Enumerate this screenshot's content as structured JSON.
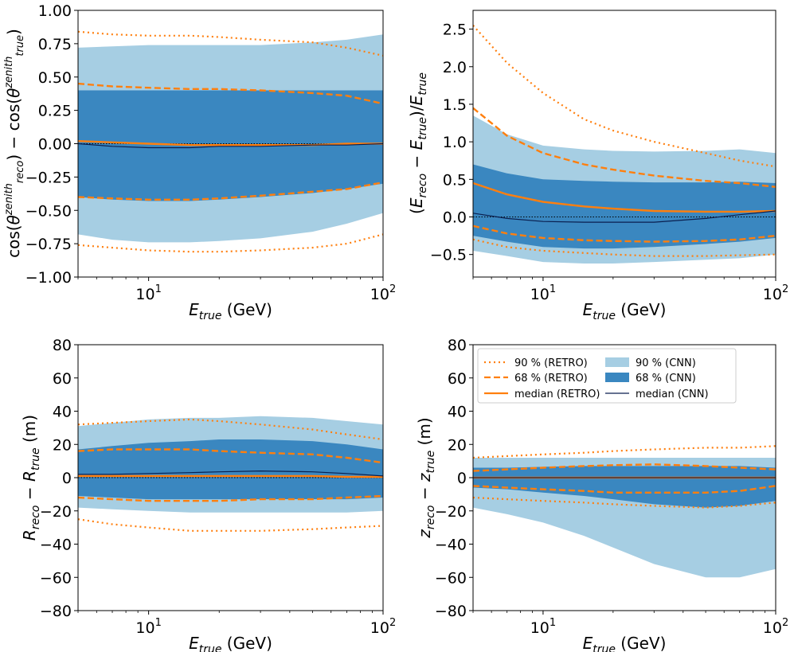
{
  "colors": {
    "retro": "#ff7f0e",
    "cnn_90": "#a6cee3",
    "cnn_68": "#3a87c0",
    "cnn_median": "#0a1f4f",
    "zero_line": "#000000"
  },
  "legend": {
    "items": [
      {
        "label": "90 % (RETRO)",
        "style": "dotted"
      },
      {
        "label": "68 % (RETRO)",
        "style": "dashed"
      },
      {
        "label": "median (RETRO)",
        "style": "solid"
      },
      {
        "label": "90 % (CNN)",
        "style": "band90"
      },
      {
        "label": "68 % (CNN)",
        "style": "band68"
      },
      {
        "label": "median (CNN)",
        "style": "cnnline"
      }
    ]
  },
  "chart_data": [
    {
      "type": "area",
      "panel": "top-left",
      "title": "",
      "xlabel_main": "E",
      "xlabel_sub": "true",
      "xlabel_unit": "(GeV)",
      "ylabel": "cos(θ_reco^zenith) − cos(θ_true^zenith)",
      "xscale": "log",
      "xlim": [
        5,
        100
      ],
      "ylim": [
        -1.0,
        1.0
      ],
      "yticks": [
        -1.0,
        -0.75,
        -0.5,
        -0.25,
        0.0,
        0.25,
        0.5,
        0.75,
        1.0
      ],
      "ytick_labels": [
        "−1.00",
        "−0.75",
        "−0.50",
        "−0.25",
        "0.00",
        "0.25",
        "0.50",
        "0.75",
        "1.00"
      ],
      "x": [
        5,
        7,
        10,
        15,
        20,
        30,
        50,
        70,
        100
      ],
      "series": [
        {
          "name": "90 % (CNN) upper",
          "values": [
            0.72,
            0.73,
            0.74,
            0.74,
            0.74,
            0.74,
            0.76,
            0.78,
            0.82
          ]
        },
        {
          "name": "90 % (CNN) lower",
          "values": [
            -0.68,
            -0.72,
            -0.74,
            -0.74,
            -0.73,
            -0.71,
            -0.66,
            -0.6,
            -0.52
          ]
        },
        {
          "name": "68 % (CNN) upper",
          "values": [
            0.4,
            0.4,
            0.4,
            0.4,
            0.4,
            0.4,
            0.4,
            0.4,
            0.4
          ]
        },
        {
          "name": "68 % (CNN) lower",
          "values": [
            -0.4,
            -0.42,
            -0.43,
            -0.43,
            -0.42,
            -0.4,
            -0.37,
            -0.34,
            -0.3
          ]
        },
        {
          "name": "median (CNN)",
          "values": [
            0.0,
            -0.02,
            -0.03,
            -0.03,
            -0.02,
            -0.02,
            -0.01,
            -0.01,
            0.0
          ]
        },
        {
          "name": "90 % (RETRO) upper",
          "values": [
            0.84,
            0.82,
            0.81,
            0.81,
            0.8,
            0.78,
            0.76,
            0.72,
            0.66
          ]
        },
        {
          "name": "90 % (RETRO) lower",
          "values": [
            -0.76,
            -0.78,
            -0.8,
            -0.81,
            -0.81,
            -0.8,
            -0.78,
            -0.75,
            -0.68
          ]
        },
        {
          "name": "68 % (RETRO) upper",
          "values": [
            0.45,
            0.43,
            0.42,
            0.41,
            0.41,
            0.4,
            0.38,
            0.36,
            0.3
          ]
        },
        {
          "name": "68 % (RETRO) lower",
          "values": [
            -0.4,
            -0.41,
            -0.42,
            -0.42,
            -0.41,
            -0.39,
            -0.36,
            -0.34,
            -0.29
          ]
        },
        {
          "name": "median (RETRO)",
          "values": [
            0.02,
            0.01,
            0.0,
            -0.01,
            -0.01,
            -0.01,
            -0.01,
            0.0,
            0.0
          ]
        }
      ]
    },
    {
      "type": "area",
      "panel": "top-right",
      "title": "",
      "xlabel_main": "E",
      "xlabel_sub": "true",
      "xlabel_unit": "(GeV)",
      "ylabel": "(E_reco − E_true)/E_true",
      "xscale": "log",
      "xlim": [
        5,
        100
      ],
      "ylim": [
        -0.8,
        2.75
      ],
      "yticks": [
        -0.5,
        0.0,
        0.5,
        1.0,
        1.5,
        2.0,
        2.5
      ],
      "ytick_labels": [
        "−0.5",
        "0.0",
        "0.5",
        "1.0",
        "1.5",
        "2.0",
        "2.5"
      ],
      "x": [
        5,
        7,
        10,
        15,
        20,
        30,
        50,
        70,
        100
      ],
      "series": [
        {
          "name": "90 % (CNN) upper",
          "values": [
            1.35,
            1.1,
            0.95,
            0.9,
            0.88,
            0.87,
            0.88,
            0.9,
            0.85
          ]
        },
        {
          "name": "90 % (CNN) lower",
          "values": [
            -0.45,
            -0.52,
            -0.6,
            -0.62,
            -0.62,
            -0.6,
            -0.57,
            -0.55,
            -0.5
          ]
        },
        {
          "name": "68 % (CNN) upper",
          "values": [
            0.7,
            0.58,
            0.5,
            0.48,
            0.47,
            0.46,
            0.46,
            0.47,
            0.45
          ]
        },
        {
          "name": "68 % (CNN) lower",
          "values": [
            -0.25,
            -0.33,
            -0.4,
            -0.42,
            -0.42,
            -0.4,
            -0.36,
            -0.33,
            -0.28
          ]
        },
        {
          "name": "median (CNN)",
          "values": [
            0.05,
            -0.02,
            -0.06,
            -0.07,
            -0.07,
            -0.07,
            -0.02,
            0.03,
            0.08
          ]
        },
        {
          "name": "90 % (RETRO) upper",
          "values": [
            2.55,
            2.05,
            1.65,
            1.3,
            1.15,
            1.0,
            0.85,
            0.75,
            0.67
          ]
        },
        {
          "name": "90 % (RETRO) lower",
          "values": [
            -0.3,
            -0.4,
            -0.45,
            -0.48,
            -0.5,
            -0.52,
            -0.52,
            -0.51,
            -0.5
          ]
        },
        {
          "name": "68 % (RETRO) upper",
          "values": [
            1.45,
            1.08,
            0.85,
            0.7,
            0.63,
            0.55,
            0.48,
            0.45,
            0.4
          ]
        },
        {
          "name": "68 % (RETRO) lower",
          "values": [
            -0.12,
            -0.22,
            -0.28,
            -0.31,
            -0.32,
            -0.33,
            -0.32,
            -0.3,
            -0.25
          ]
        },
        {
          "name": "median (RETRO)",
          "values": [
            0.45,
            0.3,
            0.2,
            0.14,
            0.11,
            0.08,
            0.07,
            0.07,
            0.08
          ]
        }
      ]
    },
    {
      "type": "area",
      "panel": "bottom-left",
      "title": "",
      "xlabel_main": "E",
      "xlabel_sub": "true",
      "xlabel_unit": "(GeV)",
      "ylabel": "R_reco − R_true (m)",
      "xscale": "log",
      "xlim": [
        5,
        100
      ],
      "ylim": [
        -80,
        80
      ],
      "yticks": [
        -80,
        -60,
        -40,
        -20,
        0,
        20,
        40,
        60,
        80
      ],
      "ytick_labels": [
        "−80",
        "−60",
        "−40",
        "−20",
        "0",
        "20",
        "40",
        "60",
        "80"
      ],
      "x": [
        5,
        7,
        10,
        15,
        20,
        30,
        50,
        70,
        100
      ],
      "series": [
        {
          "name": "90 % (CNN) upper",
          "values": [
            31,
            33,
            35,
            36,
            36,
            37,
            36,
            34,
            32
          ]
        },
        {
          "name": "90 % (CNN) lower",
          "values": [
            -18,
            -19,
            -20,
            -21,
            -21,
            -21,
            -21,
            -21,
            -20
          ]
        },
        {
          "name": "68 % (CNN) upper",
          "values": [
            17,
            19,
            21,
            22,
            23,
            23,
            22,
            20,
            17
          ]
        },
        {
          "name": "68 % (CNN) lower",
          "values": [
            -11,
            -12,
            -13,
            -13,
            -13,
            -13,
            -13,
            -13,
            -12
          ]
        },
        {
          "name": "median (CNN)",
          "values": [
            2,
            2,
            2.5,
            3,
            3.5,
            4,
            3.5,
            2.5,
            1
          ]
        },
        {
          "name": "90 % (RETRO) upper",
          "values": [
            32,
            33,
            34,
            35,
            34,
            32,
            29,
            26,
            23
          ]
        },
        {
          "name": "90 % (RETRO) lower",
          "values": [
            -25,
            -28,
            -30,
            -32,
            -32,
            -32,
            -31,
            -30,
            -29
          ]
        },
        {
          "name": "68 % (RETRO) upper",
          "values": [
            16,
            17,
            17,
            17,
            16,
            15,
            14,
            12,
            9
          ]
        },
        {
          "name": "68 % (RETRO) lower",
          "values": [
            -12,
            -13,
            -14,
            -14,
            -14,
            -13,
            -13,
            -12,
            -11
          ]
        },
        {
          "name": "median (RETRO)",
          "values": [
            1,
            1,
            1,
            1,
            1,
            1,
            1,
            0.5,
            0.5
          ]
        }
      ]
    },
    {
      "type": "area",
      "panel": "bottom-right",
      "title": "",
      "xlabel_main": "E",
      "xlabel_sub": "true",
      "xlabel_unit": "(GeV)",
      "ylabel": "z_reco − z_true (m)",
      "xscale": "log",
      "xlim": [
        5,
        100
      ],
      "ylim": [
        -80,
        80
      ],
      "yticks": [
        -80,
        -60,
        -40,
        -20,
        0,
        20,
        40,
        60,
        80
      ],
      "ytick_labels": [
        "−80",
        "−60",
        "−40",
        "−20",
        "0",
        "20",
        "40",
        "60",
        "80"
      ],
      "x": [
        5,
        7,
        10,
        15,
        20,
        30,
        50,
        70,
        100
      ],
      "series": [
        {
          "name": "90 % (CNN) upper",
          "values": [
            12,
            12,
            12,
            12,
            12,
            12,
            12,
            12,
            12
          ]
        },
        {
          "name": "90 % (CNN) lower",
          "values": [
            -18,
            -22,
            -27,
            -35,
            -42,
            -52,
            -60,
            -60,
            -55
          ]
        },
        {
          "name": "68 % (CNN) upper",
          "values": [
            6,
            6,
            6.5,
            7,
            7,
            7,
            7,
            7,
            6
          ]
        },
        {
          "name": "68 % (CNN) lower",
          "values": [
            -6,
            -7,
            -9,
            -11,
            -13,
            -16,
            -18,
            -17,
            -14
          ]
        },
        {
          "name": "median (CNN)",
          "values": [
            0,
            0,
            0,
            0,
            0,
            0,
            0,
            0,
            0
          ]
        },
        {
          "name": "90 % (RETRO) upper",
          "values": [
            12,
            13,
            14,
            15,
            16,
            17,
            18,
            18,
            19
          ]
        },
        {
          "name": "90 % (RETRO) lower",
          "values": [
            -12,
            -13,
            -14,
            -15,
            -16,
            -17,
            -18,
            -17,
            -15
          ]
        },
        {
          "name": "68 % (RETRO) upper",
          "values": [
            4,
            5,
            6,
            7,
            7.5,
            8,
            7,
            6,
            5
          ]
        },
        {
          "name": "68 % (RETRO) lower",
          "values": [
            -5,
            -6,
            -7,
            -8,
            -9,
            -9,
            -9,
            -8,
            -5
          ]
        },
        {
          "name": "median (RETRO)",
          "values": [
            0,
            0,
            0,
            0,
            0,
            0,
            0,
            0,
            0
          ]
        }
      ]
    }
  ]
}
